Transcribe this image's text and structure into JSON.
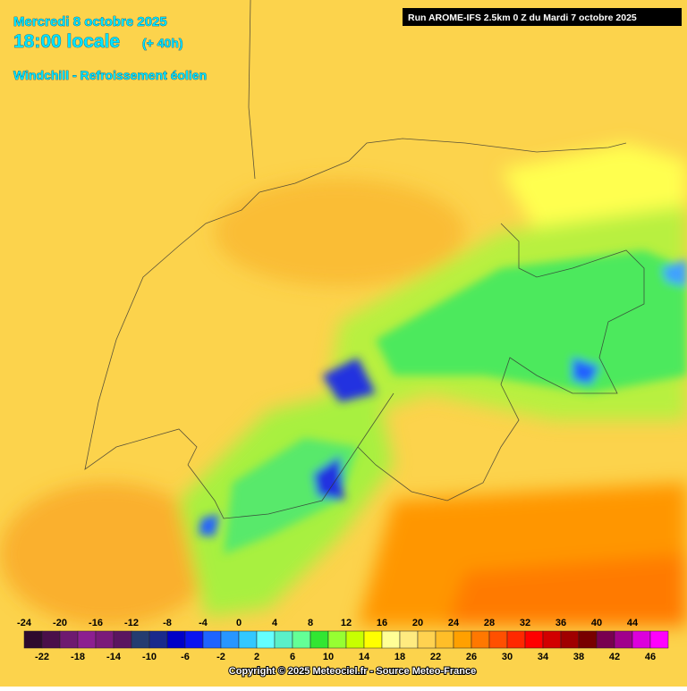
{
  "header": {
    "date": "Mercredi 8 octobre 2025",
    "time": "18:00 locale",
    "lead": "(+ 40h)",
    "parameter": "Windchill - Refroissement éolien",
    "run": "Run AROME-IFS 2.5km 0 Z du Mardi 7 octobre 2025"
  },
  "legend": {
    "values": [
      -24,
      -22,
      -20,
      -18,
      -16,
      -14,
      -12,
      -10,
      -8,
      -6,
      -4,
      -2,
      0,
      2,
      4,
      6,
      8,
      10,
      12,
      14,
      16,
      18,
      20,
      22,
      24,
      26,
      28,
      30,
      32,
      34,
      36,
      38,
      40,
      42,
      44,
      46
    ],
    "colors": [
      "#2e0a2e",
      "#4a0f4a",
      "#6e1a70",
      "#8c1f90",
      "#7a1a7a",
      "#5a1560",
      "#243c70",
      "#1a2a8c",
      "#0000c8",
      "#0a14f0",
      "#1e64ff",
      "#2896ff",
      "#32c8ff",
      "#64ffff",
      "#5af0c8",
      "#64ff96",
      "#32e632",
      "#96ff32",
      "#c8ff00",
      "#ffff00",
      "#ffff96",
      "#ffeb80",
      "#ffd250",
      "#ffbe28",
      "#ffa000",
      "#ff7800",
      "#ff5000",
      "#ff2800",
      "#ff0000",
      "#d20000",
      "#a00000",
      "#780000",
      "#780050",
      "#a0008c",
      "#dc00dc",
      "#ff00ff"
    ]
  },
  "footer": {
    "copyright": "Copyright © 2025 Meteociel.fr - Source Meteo-France"
  }
}
